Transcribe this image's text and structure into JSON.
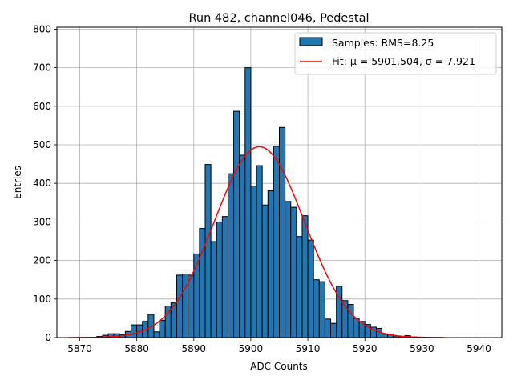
{
  "chart_data": {
    "type": "bar",
    "title": "Run 482, channel046, Pedestal",
    "xlabel": "ADC Counts",
    "ylabel": "Entries",
    "xlim": [
      5866,
      5944
    ],
    "ylim": [
      0,
      805
    ],
    "xticks": [
      5870,
      5880,
      5890,
      5900,
      5910,
      5920,
      5930,
      5940
    ],
    "yticks": [
      0,
      100,
      200,
      300,
      400,
      500,
      600,
      700,
      800
    ],
    "grid": true,
    "legend_position": "top-right",
    "bar_color": "#1f77b4",
    "fit_color": "#ff0000",
    "histogram": {
      "name": "Samples: RMS=8.25",
      "bin_edges_start": 5868,
      "bin_width": 1,
      "values": [
        0,
        0,
        0,
        0,
        1,
        3,
        6,
        10,
        10,
        8,
        16,
        33,
        33,
        42,
        60,
        15,
        45,
        82,
        90,
        162,
        165,
        162,
        217,
        283,
        449,
        249,
        300,
        314,
        425,
        587,
        473,
        700,
        393,
        446,
        344,
        381,
        496,
        545,
        353,
        338,
        262,
        316,
        253,
        150,
        145,
        48,
        37,
        133,
        96,
        86,
        50,
        42,
        34,
        27,
        24,
        9,
        8,
        4,
        3,
        5,
        2,
        1,
        1,
        0,
        0,
        0,
        0
      ],
      "fit_label": "Fit: μ = 5901.504, σ = 7.921",
      "fit": {
        "mu": 5901.504,
        "sigma": 7.921,
        "amplitude": 495,
        "x_range": [
          5868,
          5934
        ]
      }
    }
  }
}
